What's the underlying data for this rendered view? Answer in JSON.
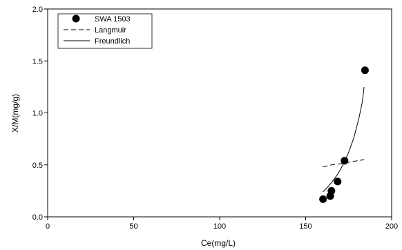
{
  "chart_data": {
    "type": "scatter",
    "title": "",
    "xlabel": "Ce(mg/L)",
    "ylabel": "X/M(mg/g)",
    "xlim": [
      0,
      200
    ],
    "ylim": [
      0,
      2.0
    ],
    "xticks": [
      0,
      50,
      100,
      150,
      200
    ],
    "yticks": [
      0.0,
      0.5,
      1.0,
      1.5,
      2.0
    ],
    "xtick_labels": [
      "0",
      "50",
      "100",
      "150",
      "200"
    ],
    "ytick_labels": [
      "0.0",
      "0.5",
      "1.0",
      "1.5",
      "2.0"
    ],
    "grid": false,
    "legend_position": "top-left",
    "series": [
      {
        "name": "SWA 1503",
        "kind": "points",
        "x": [
          160.1,
          164.3,
          165.0,
          168.6,
          172.6,
          184.5
        ],
        "y": [
          0.17,
          0.2,
          0.25,
          0.34,
          0.54,
          1.41
        ]
      },
      {
        "name": "Langmuir",
        "kind": "line",
        "style": "dashed",
        "x": [
          160,
          165,
          170,
          175,
          180,
          184
        ],
        "y": [
          0.48,
          0.5,
          0.51,
          0.525,
          0.54,
          0.55
        ]
      },
      {
        "name": "Freundlich",
        "kind": "line",
        "style": "solid",
        "x": [
          160,
          163,
          166,
          169,
          172,
          175,
          178,
          181,
          183,
          184
        ],
        "y": [
          0.24,
          0.29,
          0.35,
          0.42,
          0.51,
          0.62,
          0.76,
          0.95,
          1.11,
          1.25
        ]
      }
    ]
  }
}
